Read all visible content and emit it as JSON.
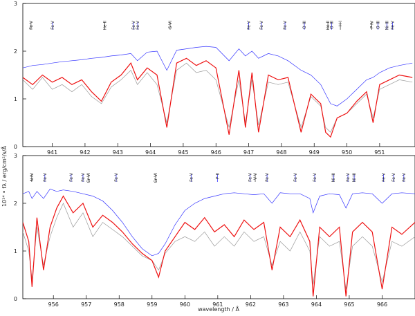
{
  "chart_data": [
    {
      "type": "line",
      "ylabel": "10¹⁴ • fλ / erg/cm²/s/Å",
      "xlim": [
        940.1,
        952.08
      ],
      "xticks": [
        941,
        942,
        943,
        944,
        945,
        946,
        947,
        948,
        949,
        950,
        951
      ],
      "ylim": [
        0,
        3
      ],
      "yticks": [
        0,
        1,
        2,
        3
      ],
      "x": [
        940.1,
        940.4,
        940.7,
        941.0,
        941.3,
        941.6,
        941.9,
        942.2,
        942.5,
        942.8,
        943.1,
        943.4,
        943.6,
        943.9,
        944.2,
        944.5,
        944.8,
        945.1,
        945.4,
        945.7,
        946.0,
        946.4,
        946.7,
        946.9,
        947.1,
        947.3,
        947.6,
        947.9,
        948.2,
        948.6,
        948.9,
        949.2,
        949.35,
        949.5,
        949.7,
        950.0,
        950.3,
        950.6,
        950.8,
        951.0,
        951.3,
        951.6,
        952.0
      ],
      "series": [
        {
          "color": "#3333ff",
          "values": [
            1.65,
            1.7,
            1.72,
            1.75,
            1.78,
            1.8,
            1.82,
            1.85,
            1.87,
            1.9,
            1.92,
            1.95,
            1.8,
            1.98,
            2.0,
            1.6,
            2.02,
            2.05,
            2.08,
            2.1,
            2.08,
            1.8,
            2.05,
            1.9,
            2.0,
            1.85,
            1.95,
            1.9,
            1.8,
            1.6,
            1.5,
            1.3,
            1.1,
            0.9,
            0.85,
            1.0,
            1.2,
            1.4,
            1.45,
            1.55,
            1.65,
            1.7,
            1.75
          ]
        },
        {
          "color": "#999999",
          "values": [
            1.4,
            1.2,
            1.45,
            1.2,
            1.3,
            1.15,
            1.3,
            1.05,
            0.9,
            1.25,
            1.4,
            1.6,
            1.3,
            1.55,
            1.3,
            0.5,
            1.6,
            1.75,
            1.55,
            1.6,
            1.4,
            0.4,
            1.4,
            0.5,
            1.4,
            0.45,
            1.35,
            1.3,
            1.35,
            0.4,
            1.05,
            0.85,
            0.4,
            0.3,
            0.6,
            0.7,
            0.9,
            1.1,
            0.6,
            1.2,
            1.3,
            1.4,
            1.35
          ]
        },
        {
          "color": "#ee1111",
          "values": [
            1.45,
            1.3,
            1.5,
            1.35,
            1.45,
            1.3,
            1.4,
            1.15,
            0.95,
            1.35,
            1.5,
            1.75,
            1.4,
            1.65,
            1.5,
            0.4,
            1.75,
            1.85,
            1.7,
            1.8,
            1.65,
            0.25,
            1.6,
            0.4,
            1.55,
            0.3,
            1.5,
            1.4,
            1.45,
            0.3,
            1.1,
            0.9,
            0.3,
            0.2,
            0.6,
            0.7,
            0.95,
            1.15,
            0.5,
            1.3,
            1.4,
            1.5,
            1.45
          ]
        }
      ],
      "line_ids": [
        {
          "label": "Fe V",
          "x": 940.35,
          "color": "#444444"
        },
        {
          "label": "Fe V",
          "x": 941.01,
          "color": "#3333ff"
        },
        {
          "label": "He II",
          "x": 942.6,
          "color": "#444444"
        },
        {
          "label": "Fe V",
          "x": 943.48,
          "color": "#3333ff"
        },
        {
          "label": "Fe V",
          "x": 943.61,
          "color": "#3333ff"
        },
        {
          "label": "S VI",
          "x": 944.6,
          "color": "#444444"
        },
        {
          "label": "Fe V",
          "x": 947.0,
          "color": "#3333ff"
        },
        {
          "label": "Fe V",
          "x": 947.39,
          "color": "#3333ff"
        },
        {
          "label": "Fe V",
          "x": 948.11,
          "color": "#3333ff"
        },
        {
          "label": "O III",
          "x": 948.7,
          "color": "#3333ff"
        },
        {
          "label": "He II",
          "x": 949.42,
          "color": "#444444"
        },
        {
          "label": "O III",
          "x": 949.53,
          "color": "#3333ff"
        },
        {
          "label": "H I",
          "x": 949.8,
          "color": "#444444"
        },
        {
          "label": "P IV",
          "x": 950.76,
          "color": "#444444"
        },
        {
          "label": "O III",
          "x": 950.95,
          "color": "#3333ff"
        },
        {
          "label": "Ni III",
          "x": 951.22,
          "color": "#3333ff"
        },
        {
          "label": "Fe V",
          "x": 951.39,
          "color": "#3333ff"
        }
      ]
    },
    {
      "type": "line",
      "xlabel": "wavelength / Å",
      "xlim": [
        955.07,
        967.0
      ],
      "xticks": [
        956,
        957,
        958,
        959,
        960,
        961,
        962,
        963,
        964,
        965,
        966
      ],
      "ylim": [
        0,
        3
      ],
      "yticks": [
        0,
        1,
        2,
        3
      ],
      "x": [
        955.07,
        955.25,
        955.35,
        955.5,
        955.7,
        955.9,
        956.1,
        956.3,
        956.6,
        956.9,
        957.2,
        957.5,
        957.8,
        958.1,
        958.4,
        958.7,
        959.0,
        959.2,
        959.4,
        959.7,
        960.0,
        960.3,
        960.6,
        960.9,
        961.2,
        961.5,
        961.8,
        962.1,
        962.4,
        962.65,
        962.9,
        963.2,
        963.5,
        963.8,
        963.9,
        964.1,
        964.4,
        964.7,
        964.9,
        965.1,
        965.4,
        965.7,
        966.0,
        966.3,
        966.6,
        967.0
      ],
      "series": [
        {
          "color": "#3333ff",
          "values": [
            2.2,
            2.25,
            2.1,
            2.25,
            2.1,
            2.3,
            2.25,
            2.28,
            2.25,
            2.2,
            2.15,
            2.05,
            1.85,
            1.6,
            1.3,
            1.05,
            0.9,
            0.95,
            1.15,
            1.55,
            1.85,
            2.0,
            2.1,
            2.15,
            2.2,
            2.22,
            2.2,
            2.18,
            2.2,
            2.0,
            2.22,
            2.2,
            2.2,
            2.1,
            1.8,
            2.15,
            2.2,
            2.18,
            1.9,
            2.2,
            2.22,
            2.2,
            2.0,
            2.2,
            2.22,
            2.2
          ]
        },
        {
          "color": "#999999",
          "values": [
            1.4,
            1.0,
            0.4,
            1.5,
            0.7,
            1.3,
            1.7,
            2.0,
            1.5,
            1.8,
            1.3,
            1.6,
            1.45,
            1.3,
            1.1,
            0.9,
            0.8,
            0.6,
            0.95,
            1.2,
            1.3,
            1.2,
            1.4,
            1.1,
            1.3,
            1.1,
            1.4,
            1.2,
            1.3,
            0.7,
            1.2,
            1.0,
            1.4,
            1.0,
            0.3,
            1.3,
            1.1,
            1.2,
            0.2,
            1.1,
            1.3,
            1.1,
            0.35,
            1.2,
            1.1,
            1.3
          ]
        },
        {
          "color": "#ee1111",
          "values": [
            1.6,
            1.2,
            0.25,
            1.7,
            0.6,
            1.5,
            1.9,
            2.15,
            1.8,
            2.0,
            1.5,
            1.75,
            1.6,
            1.4,
            1.15,
            0.95,
            0.8,
            0.45,
            1.0,
            1.3,
            1.6,
            1.45,
            1.7,
            1.4,
            1.55,
            1.3,
            1.65,
            1.45,
            1.6,
            0.6,
            1.5,
            1.3,
            1.65,
            1.2,
            0.05,
            1.5,
            1.3,
            1.5,
            0.05,
            1.4,
            1.6,
            1.4,
            0.2,
            1.5,
            1.35,
            1.6
          ]
        }
      ],
      "line_ids": [
        {
          "label": "N IV",
          "x": 955.34,
          "color": "#444444"
        },
        {
          "label": "Fe V",
          "x": 955.74,
          "color": "#3333ff"
        },
        {
          "label": "Fe V",
          "x": 956.54,
          "color": "#3333ff"
        },
        {
          "label": "Fe V",
          "x": 956.9,
          "color": "#3333ff"
        },
        {
          "label": "Cr VI",
          "x": 957.07,
          "color": "#444444"
        },
        {
          "label": "Fe V",
          "x": 957.91,
          "color": "#3333ff"
        },
        {
          "label": "Cr VI",
          "x": 959.11,
          "color": "#444444"
        },
        {
          "label": "Fe V",
          "x": 960.19,
          "color": "#3333ff"
        },
        {
          "label": "P II",
          "x": 960.99,
          "color": "#3333ff"
        },
        {
          "label": "Fe V",
          "x": 961.98,
          "color": "#3333ff"
        },
        {
          "label": "V V",
          "x": 962.14,
          "color": "#444444"
        },
        {
          "label": "Fe V",
          "x": 962.5,
          "color": "#3333ff"
        },
        {
          "label": "Fe V",
          "x": 963.36,
          "color": "#3333ff"
        },
        {
          "label": "Fe V",
          "x": 963.95,
          "color": "#3333ff"
        },
        {
          "label": "Ni III",
          "x": 964.52,
          "color": "#3333ff"
        },
        {
          "label": "Fe V",
          "x": 964.96,
          "color": "#3333ff"
        },
        {
          "label": "Ni III",
          "x": 965.15,
          "color": "#3333ff"
        },
        {
          "label": "Fe V",
          "x": 966.04,
          "color": "#3333ff"
        },
        {
          "label": "Fe V",
          "x": 966.35,
          "color": "#3333ff"
        },
        {
          "label": "Fe V",
          "x": 966.66,
          "color": "#3333ff"
        }
      ]
    }
  ]
}
